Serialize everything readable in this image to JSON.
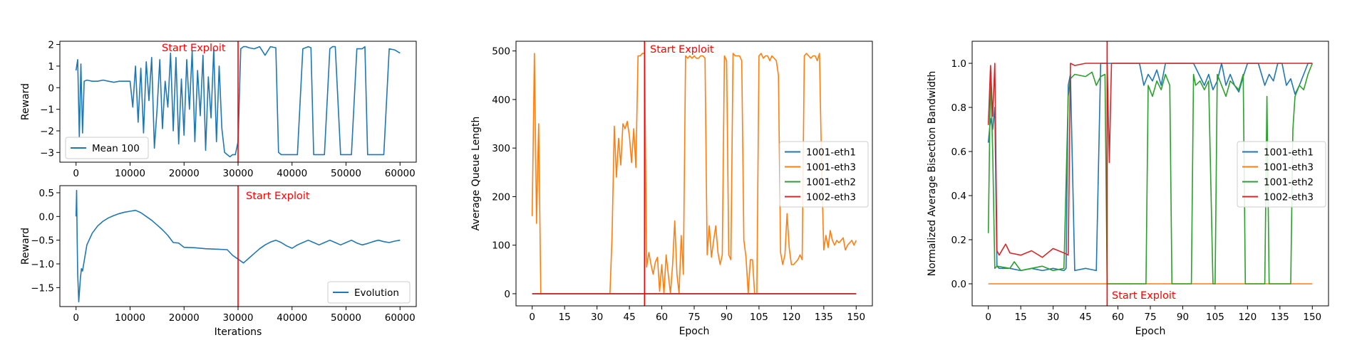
{
  "colors": {
    "blue": "#1f77b4",
    "orange": "#ff7f0e",
    "green": "#2ca02c",
    "red": "#d62728",
    "annotation": "#ff0000"
  },
  "chart_data": [
    {
      "id": "reward-mean",
      "type": "line",
      "xlabel": "",
      "ylabel": "Reward",
      "xlim": [
        -3000,
        63000
      ],
      "ylim": [
        -3.45,
        2.15
      ],
      "xticks": [
        0,
        10000,
        20000,
        30000,
        40000,
        50000,
        60000
      ],
      "yticks": [
        -3,
        -2,
        -1,
        0,
        1,
        2
      ],
      "grid": false,
      "legend_position": "lower-left",
      "series": [
        {
          "name": "Mean 100",
          "color": "#1f77b4",
          "x": [
            0,
            300,
            600,
            900,
            1200,
            1500,
            2000,
            3000,
            4000,
            5000,
            6000,
            7000,
            8000,
            9000,
            10000,
            10500,
            11000,
            11500,
            12000,
            12500,
            13000,
            13500,
            14000,
            14500,
            15000,
            15500,
            16000,
            16500,
            17000,
            17500,
            18000,
            18500,
            19000,
            19500,
            20000,
            20500,
            21000,
            21500,
            22000,
            22500,
            23000,
            23500,
            24000,
            24500,
            25000,
            25500,
            26000,
            26500,
            27000,
            27500,
            28000,
            28500,
            29000,
            29500,
            30000,
            30500,
            31000,
            31500,
            32000,
            33000,
            34000,
            35000,
            36000,
            37000,
            37500,
            38000,
            39000,
            40000,
            41000,
            42000,
            43000,
            43500,
            44000,
            45000,
            46000,
            47000,
            47500,
            48000,
            49000,
            50000,
            51000,
            52000,
            53000,
            53500,
            54000,
            55000,
            56000,
            57000,
            58000,
            59000,
            60000
          ],
          "y": [
            0.8,
            1.3,
            -2.3,
            1.1,
            -2.1,
            0.3,
            0.35,
            0.3,
            0.3,
            0.35,
            0.3,
            0.25,
            0.3,
            0.3,
            0.3,
            -0.9,
            1.0,
            -1.6,
            0.9,
            -2.1,
            1.2,
            -0.6,
            1.4,
            -2.8,
            -1.0,
            1.3,
            -1.9,
            0.3,
            -0.9,
            1.6,
            -2.0,
            1.4,
            -2.6,
            0.4,
            -2.2,
            1.3,
            -1.0,
            1.7,
            -2.5,
            0.8,
            -1.3,
            1.5,
            -2.9,
            0.5,
            -1.4,
            1.8,
            -2.5,
            1.0,
            -1.9,
            -3.0,
            -3.1,
            -3.2,
            -3.1,
            -3.1,
            -2.5,
            1.8,
            1.9,
            1.9,
            1.85,
            1.8,
            1.9,
            1.5,
            1.9,
            1.85,
            -3.0,
            -3.1,
            -3.1,
            -3.1,
            -3.1,
            1.8,
            1.9,
            1.85,
            -3.1,
            -3.1,
            -3.1,
            1.8,
            1.9,
            1.9,
            -3.1,
            -3.1,
            -3.1,
            1.8,
            1.8,
            1.9,
            -3.1,
            -3.1,
            -3.1,
            -3.1,
            1.8,
            1.75,
            1.6
          ]
        }
      ],
      "annotations": [
        {
          "type": "vline",
          "x": 30000,
          "color": "#ff0000"
        },
        {
          "type": "text",
          "text": "Start Exploit",
          "color": "#ff0000"
        }
      ]
    },
    {
      "id": "reward-evolution",
      "type": "line",
      "xlabel": "Iterations",
      "ylabel": "Reward",
      "xlim": [
        -3000,
        63000
      ],
      "ylim": [
        -1.9,
        0.65
      ],
      "xticks": [
        0,
        10000,
        20000,
        30000,
        40000,
        50000,
        60000
      ],
      "yticks": [
        -1.5,
        -1.0,
        -0.5,
        0.0,
        0.5
      ],
      "grid": false,
      "legend_position": "lower-right",
      "series": [
        {
          "name": "Evolution",
          "color": "#1f77b4",
          "x": [
            0,
            100,
            200,
            300,
            500,
            800,
            1000,
            1200,
            2000,
            3000,
            4000,
            5000,
            6000,
            7000,
            8000,
            9000,
            10000,
            11000,
            12000,
            13000,
            14000,
            15000,
            16000,
            17000,
            18000,
            19000,
            20000,
            22000,
            24000,
            26000,
            28000,
            29000,
            30000,
            31000,
            32000,
            33000,
            34000,
            35000,
            36000,
            37000,
            38000,
            39000,
            40000,
            41000,
            42000,
            43000,
            44000,
            45000,
            46000,
            47000,
            48000,
            49000,
            50000,
            51000,
            52000,
            53000,
            54000,
            55000,
            56000,
            57000,
            58000,
            59000,
            60000
          ],
          "y": [
            0.0,
            0.55,
            -0.4,
            -1.2,
            -1.8,
            -1.3,
            -1.1,
            -1.15,
            -0.6,
            -0.35,
            -0.2,
            -0.1,
            -0.03,
            0.02,
            0.06,
            0.09,
            0.11,
            0.13,
            0.08,
            0.0,
            -0.08,
            -0.18,
            -0.28,
            -0.4,
            -0.55,
            -0.56,
            -0.65,
            -0.66,
            -0.68,
            -0.69,
            -0.7,
            -0.82,
            -0.9,
            -0.98,
            -0.88,
            -0.78,
            -0.68,
            -0.6,
            -0.54,
            -0.5,
            -0.55,
            -0.62,
            -0.67,
            -0.6,
            -0.55,
            -0.5,
            -0.55,
            -0.6,
            -0.55,
            -0.5,
            -0.55,
            -0.6,
            -0.55,
            -0.5,
            -0.56,
            -0.6,
            -0.57,
            -0.53,
            -0.5,
            -0.53,
            -0.55,
            -0.52,
            -0.5
          ]
        }
      ],
      "annotations": [
        {
          "type": "vline",
          "x": 30000,
          "color": "#ff0000"
        },
        {
          "type": "text",
          "text": "Start Exploit",
          "color": "#ff0000"
        }
      ]
    },
    {
      "id": "queue-length",
      "type": "line",
      "xlabel": "Epoch",
      "ylabel": "Average Queue Length",
      "xlim": [
        -7.5,
        157.5
      ],
      "ylim": [
        -25,
        520
      ],
      "xticks": [
        0,
        15,
        30,
        45,
        60,
        75,
        90,
        105,
        120,
        135,
        150
      ],
      "yticks": [
        0,
        100,
        200,
        300,
        400,
        500
      ],
      "grid": false,
      "legend_position": "center-right",
      "series": [
        {
          "name": "1001-eth1",
          "color": "#1f77b4",
          "x": [
            0,
            150
          ],
          "y": [
            0,
            0
          ]
        },
        {
          "name": "1001-eth3",
          "color": "#ff7f0e",
          "x": [
            0,
            1,
            2,
            3,
            4,
            36,
            37,
            38,
            39,
            40,
            41,
            42,
            43,
            44,
            45,
            46,
            47,
            48,
            49,
            50,
            51,
            52,
            53,
            54,
            55,
            56,
            57,
            58,
            59,
            60,
            61,
            62,
            63,
            64,
            65,
            66,
            67,
            68,
            69,
            70,
            71,
            72,
            73,
            74,
            75,
            76,
            77,
            78,
            79,
            80,
            81,
            82,
            83,
            84,
            85,
            86,
            87,
            88,
            89,
            90,
            91,
            92,
            93,
            94,
            95,
            96,
            97,
            98,
            99,
            100,
            101,
            102,
            103,
            104,
            105,
            106,
            107,
            108,
            109,
            110,
            111,
            112,
            113,
            114,
            115,
            116,
            117,
            118,
            119,
            120,
            121,
            122,
            123,
            124,
            125,
            126,
            127,
            128,
            129,
            130,
            131,
            132,
            133,
            134,
            135,
            136,
            137,
            138,
            139,
            140,
            141,
            142,
            143,
            144,
            145,
            146,
            147,
            148,
            149,
            150
          ],
          "y": [
            160,
            495,
            145,
            350,
            0,
            0,
            120,
            345,
            240,
            320,
            265,
            350,
            340,
            355,
            325,
            270,
            340,
            260,
            490,
            490,
            495,
            495,
            55,
            85,
            60,
            40,
            65,
            75,
            5,
            60,
            0,
            80,
            40,
            0,
            60,
            150,
            40,
            0,
            120,
            40,
            490,
            485,
            490,
            485,
            490,
            485,
            485,
            490,
            490,
            485,
            80,
            140,
            75,
            110,
            140,
            85,
            60,
            80,
            490,
            480,
            80,
            70,
            495,
            490,
            490,
            490,
            480,
            110,
            75,
            0,
            70,
            70,
            0,
            0,
            490,
            495,
            485,
            490,
            490,
            480,
            490,
            485,
            480,
            450,
            85,
            60,
            80,
            165,
            95,
            60,
            60,
            65,
            70,
            80,
            70,
            490,
            495,
            490,
            485,
            490,
            490,
            480,
            495,
            260,
            90,
            120,
            95,
            130,
            110,
            100,
            110,
            105,
            110,
            115,
            90,
            100,
            105,
            110,
            100,
            110
          ]
        },
        {
          "name": "1001-eth2",
          "color": "#2ca02c",
          "x": [
            0,
            150
          ],
          "y": [
            0,
            0
          ]
        },
        {
          "name": "1002-eth3",
          "color": "#d62728",
          "x": [
            0,
            150
          ],
          "y": [
            0,
            0
          ]
        }
      ],
      "annotations": [
        {
          "type": "vline",
          "x": 52,
          "color": "#ff0000"
        },
        {
          "type": "text",
          "text": "Start Exploit",
          "color": "#ff0000"
        }
      ]
    },
    {
      "id": "bisection-bandwidth",
      "type": "line",
      "xlabel": "Epoch",
      "ylabel": "Normalized Average Bisection Bandwidth",
      "xlim": [
        -7.5,
        157.5
      ],
      "ylim": [
        -0.1,
        1.1
      ],
      "xticks": [
        0,
        15,
        30,
        45,
        60,
        75,
        90,
        105,
        120,
        135,
        150
      ],
      "yticks": [
        0.0,
        0.2,
        0.4,
        0.6,
        0.8,
        1.0
      ],
      "grid": false,
      "legend_position": "center-right",
      "series": [
        {
          "name": "1001-eth1",
          "color": "#1f77b4",
          "x": [
            0,
            1,
            2,
            3,
            4,
            5,
            10,
            15,
            20,
            25,
            30,
            35,
            36,
            37,
            38,
            40,
            45,
            50,
            52,
            55,
            60,
            65,
            70,
            72,
            74,
            76,
            78,
            80,
            82,
            84,
            86,
            88,
            90,
            95,
            100,
            102,
            104,
            106,
            108,
            110,
            112,
            114,
            116,
            118,
            120,
            125,
            128,
            130,
            132,
            134,
            136,
            138,
            140,
            142,
            144,
            146,
            148,
            150
          ],
          "y": [
            0.64,
            0.75,
            0.7,
            0.8,
            0.08,
            0.07,
            0.07,
            0.06,
            0.07,
            0.06,
            0.07,
            0.06,
            0.07,
            0.9,
            0.95,
            0.06,
            0.07,
            0.06,
            1.0,
            1.0,
            1.0,
            1.0,
            1.0,
            0.9,
            0.95,
            0.92,
            0.97,
            0.9,
            1.0,
            1.0,
            1.0,
            1.0,
            1.0,
            1.0,
            0.9,
            0.95,
            0.88,
            0.92,
            1.0,
            0.9,
            0.95,
            0.9,
            0.87,
            0.94,
            1.0,
            1.0,
            0.9,
            0.95,
            0.92,
            1.0,
            1.0,
            0.9,
            0.93,
            0.86,
            0.9,
            0.95,
            1.0,
            1.0
          ]
        },
        {
          "name": "1001-eth3",
          "color": "#ff7f0e",
          "x": [
            0,
            150
          ],
          "y": [
            0,
            0
          ]
        },
        {
          "name": "1001-eth2",
          "color": "#2ca02c",
          "x": [
            0,
            1,
            2,
            3,
            4,
            10,
            12,
            15,
            20,
            25,
            30,
            35,
            37,
            38,
            40,
            45,
            48,
            50,
            52,
            54,
            55,
            60,
            70,
            73,
            74,
            76,
            78,
            80,
            82,
            84,
            85,
            86,
            90,
            94,
            95,
            96,
            98,
            100,
            102,
            104,
            105,
            106,
            108,
            110,
            112,
            114,
            116,
            118,
            119,
            120,
            128,
            129,
            130,
            140,
            141,
            142,
            144,
            146,
            148,
            150
          ],
          "y": [
            0.23,
            0.97,
            0.6,
            0.07,
            0.08,
            0.07,
            0.1,
            0.06,
            0.07,
            0.08,
            0.06,
            0.07,
            0.85,
            0.93,
            0.95,
            0.94,
            0.96,
            0.9,
            0.94,
            0.95,
            0.0,
            0.0,
            0.0,
            0.0,
            0.9,
            0.85,
            0.92,
            0.88,
            0.95,
            0.9,
            0.0,
            0.0,
            0.0,
            0.0,
            0.95,
            0.9,
            0.92,
            0.88,
            0.92,
            0.0,
            0.0,
            0.95,
            0.9,
            0.85,
            0.92,
            0.9,
            0.88,
            0.95,
            0.0,
            0.0,
            0.0,
            0.85,
            0.0,
            0.0,
            0.7,
            0.85,
            0.9,
            0.88,
            0.95,
            1.0
          ]
        },
        {
          "name": "1002-eth3",
          "color": "#d62728",
          "x": [
            0,
            1,
            2,
            3,
            4,
            5,
            8,
            10,
            15,
            20,
            25,
            30,
            35,
            37,
            38,
            40,
            45,
            50,
            55,
            56,
            57,
            60,
            70,
            80,
            90,
            100,
            110,
            120,
            130,
            140,
            150
          ],
          "y": [
            0.72,
            0.99,
            0.76,
            1.0,
            0.15,
            0.13,
            0.18,
            0.14,
            0.13,
            0.15,
            0.12,
            0.16,
            0.14,
            0.13,
            1.0,
            0.99,
            1.0,
            1.0,
            1.0,
            0.55,
            1.0,
            1.0,
            1.0,
            1.0,
            1.0,
            1.0,
            1.0,
            1.0,
            1.0,
            1.0,
            1.0
          ]
        }
      ],
      "annotations": [
        {
          "type": "vline",
          "x": 55,
          "color": "#ff0000"
        },
        {
          "type": "text",
          "text": "Start Exploit",
          "color": "#ff0000"
        }
      ]
    }
  ]
}
